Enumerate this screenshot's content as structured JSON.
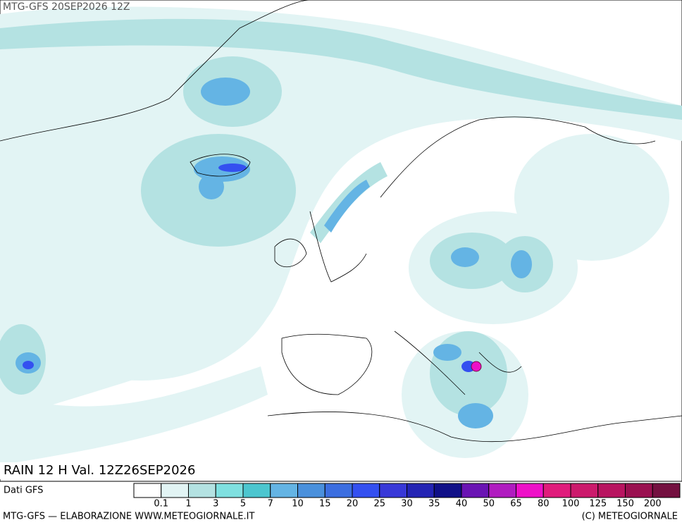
{
  "header": {
    "title": "MTG-GFS 20SEP2026 12Z"
  },
  "map": {
    "caption": "RAIN 12 H Val. 12Z26SEP2026"
  },
  "legend": {
    "source": "Dati GFS",
    "colors": [
      "#ffffff",
      "#e2f4f4",
      "#b4e2e2",
      "#7fe0e0",
      "#4cc6cf",
      "#64b4e4",
      "#4a90dc",
      "#3c6ee0",
      "#3450f0",
      "#3838d8",
      "#2424b4",
      "#101088",
      "#6a14b4",
      "#b01cc0",
      "#ee10c8",
      "#e01c7c",
      "#cc1a6c",
      "#b81460",
      "#9a1050",
      "#741040"
    ],
    "labels": [
      "0.1",
      "1",
      "3",
      "5",
      "7",
      "10",
      "15",
      "20",
      "25",
      "30",
      "35",
      "40",
      "50",
      "65",
      "80",
      "100",
      "125",
      "150",
      "200"
    ]
  },
  "footer": {
    "left": "MTG-GFS — ELABORAZIONE WWW.METEOGIORNALE.IT",
    "right": "(C) METEOGIORNALE"
  }
}
